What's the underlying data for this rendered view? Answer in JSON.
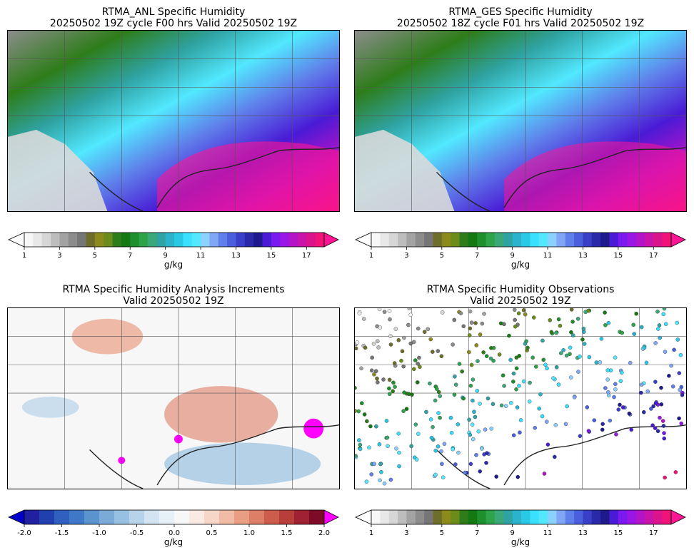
{
  "panels": [
    {
      "title1": "RTMA_ANL Specific Humidity",
      "title2": "20250502 19Z cycle F00 hrs Valid 20250502 19Z",
      "kind": "field"
    },
    {
      "title1": "RTMA_GES Specific Humidity",
      "title2": "20250502 18Z cycle F01 hrs Valid 20250502 19Z",
      "kind": "field"
    },
    {
      "title1": "RTMA Specific Humidity Analysis Increments",
      "title2": "Valid 20250502 19Z",
      "kind": "increment"
    },
    {
      "title1": "RTMA Specific Humidity Observations",
      "title2": "Valid 20250502 19Z",
      "kind": "obs"
    }
  ],
  "colorbars": {
    "humidity": {
      "unit": "g/kg",
      "ticks": [
        "1",
        "3",
        "5",
        "7",
        "9",
        "11",
        "13",
        "15",
        "17"
      ],
      "colors": [
        "#f7f7f7",
        "#e8e8e8",
        "#d6d6d6",
        "#bdbdbd",
        "#a3a3a3",
        "#8c8c8c",
        "#767676",
        "#6e6e2a",
        "#8c8a1a",
        "#6b8c1a",
        "#2e7d1a",
        "#137a13",
        "#1d8f2d",
        "#2fa34a",
        "#3aa878",
        "#2fa3a3",
        "#2bb3cc",
        "#29c9e6",
        "#3bdfff",
        "#52e8ff",
        "#8ad1ff",
        "#7fa7f5",
        "#5f7fea",
        "#4a5fdc",
        "#3a3fc8",
        "#2a2aa8",
        "#1e1a8c",
        "#4a1ad6",
        "#7a1aee",
        "#9a16e6",
        "#b314c8",
        "#c814a8",
        "#dc148c",
        "#f01478"
      ],
      "extend_low": "#ffffff",
      "extend_high": "#ff1493"
    },
    "increment": {
      "unit": "g/kg",
      "ticks": [
        "-2.0",
        "-1.5",
        "-1.0",
        "-0.5",
        "0.0",
        "0.5",
        "1.0",
        "1.5",
        "2.0"
      ],
      "colors": [
        "#2020a0",
        "#2040b0",
        "#2f5fbf",
        "#3f78c6",
        "#5b93cf",
        "#7aaad8",
        "#98c0e0",
        "#b7d3ea",
        "#d2e3f1",
        "#e8f0f7",
        "#f7f7f7",
        "#f9ebe4",
        "#f6d6c7",
        "#f1bca5",
        "#e99e84",
        "#dd7e66",
        "#cc5d4c",
        "#b83e3c",
        "#a02232",
        "#7d0b28"
      ],
      "extend_low": "#0000c8",
      "extend_high": "#ff00ff"
    }
  }
}
